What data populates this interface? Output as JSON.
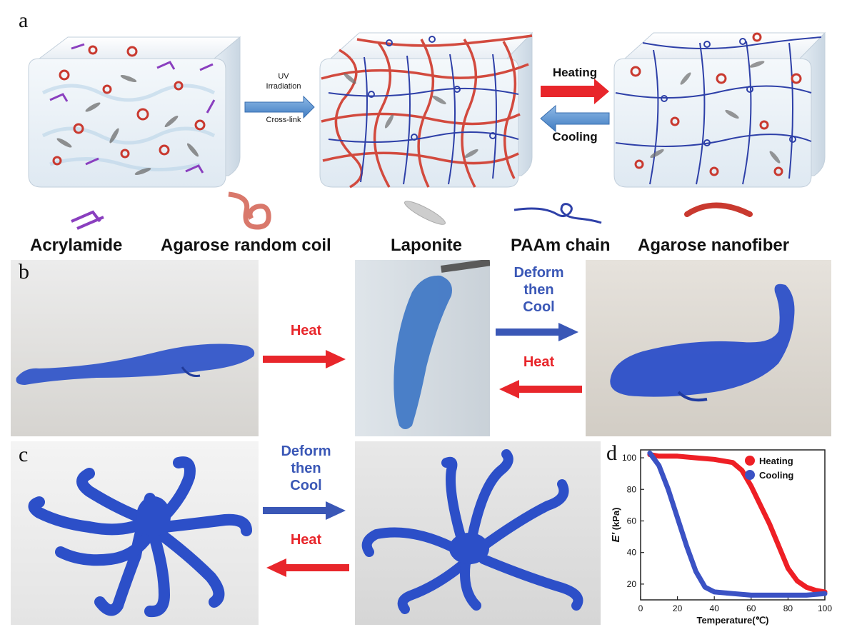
{
  "figure": {
    "panels": {
      "a": "a",
      "b": "b",
      "c": "c",
      "d": "d"
    },
    "panel_a": {
      "uv_label": [
        "UV",
        "Irradiation",
        "Cross-link"
      ],
      "heating_label": "Heating",
      "cooling_label": "Cooling",
      "legend": [
        "Acrylamide",
        "Agarose random coil",
        "Laponite",
        "PAAm chain",
        "Agarose nanofiber"
      ]
    },
    "panel_b": {
      "heat_forward": "Heat",
      "deform_cool": [
        "Deform",
        "then",
        "Cool"
      ],
      "heat_back": "Heat"
    },
    "panel_c": {
      "deform_cool": [
        "Deform",
        "then",
        "Cool"
      ],
      "heat_back": "Heat"
    },
    "colors": {
      "heat": "#e8262b",
      "cool": "#3a57b6",
      "gel_blue": "#2c4fc8",
      "agarose_red": "#d24a3e"
    }
  },
  "chart_data": {
    "type": "line",
    "xlabel": "Temperature(℃)",
    "ylabel": "E' (kPa)",
    "xlim": [
      0,
      100
    ],
    "ylim": [
      10,
      105
    ],
    "xticks": [
      0,
      20,
      40,
      60,
      80,
      100
    ],
    "yticks": [
      20,
      40,
      60,
      80,
      100
    ],
    "legend_position": "top-right",
    "series": [
      {
        "name": "Heating",
        "color": "#ee1f25",
        "x": [
          5,
          10,
          20,
          30,
          40,
          50,
          55,
          60,
          65,
          70,
          75,
          80,
          85,
          90,
          95,
          100
        ],
        "y": [
          102,
          101,
          101,
          100,
          99,
          97,
          92,
          82,
          70,
          58,
          44,
          30,
          22,
          18,
          16,
          15
        ]
      },
      {
        "name": "Cooling",
        "color": "#3b52c4",
        "x": [
          5,
          10,
          15,
          20,
          25,
          30,
          35,
          40,
          50,
          60,
          70,
          80,
          90,
          100
        ],
        "y": [
          103,
          95,
          80,
          62,
          44,
          28,
          18,
          15,
          14,
          13,
          13,
          13,
          13,
          14
        ]
      }
    ]
  }
}
